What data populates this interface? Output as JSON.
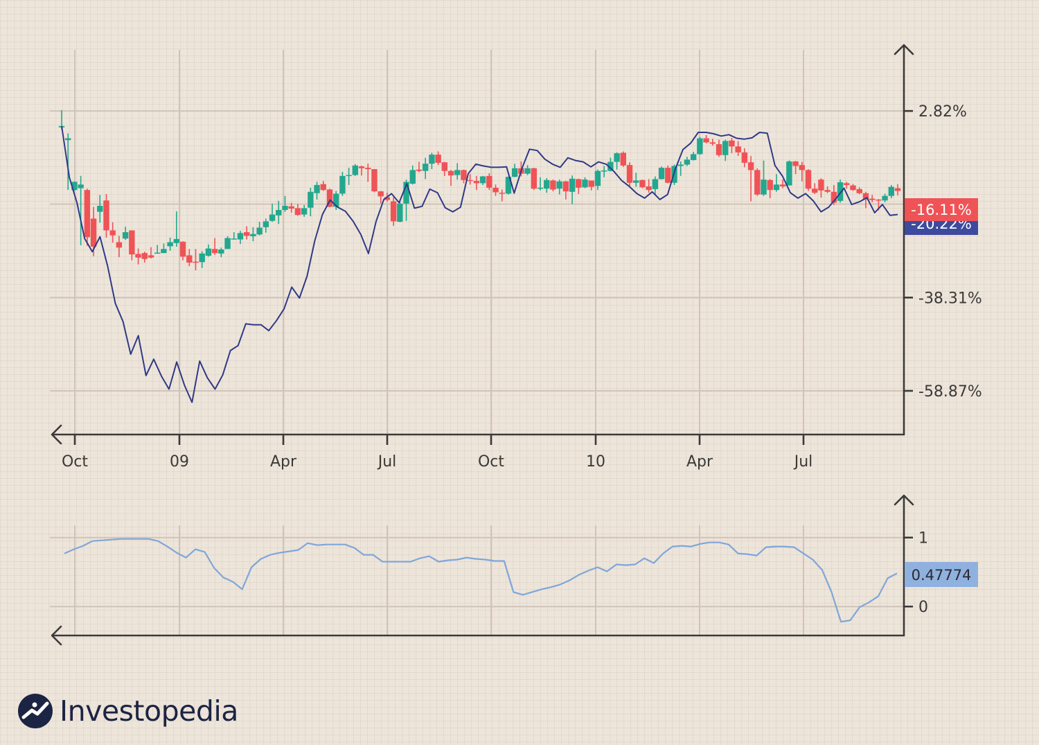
{
  "chart_data": [
    {
      "type": "candlestick",
      "title": "",
      "x_tick_labels": [
        "Oct",
        "09",
        "Apr",
        "Jul",
        "Oct",
        "10",
        "Apr",
        "Jul"
      ],
      "y_tick_labels": [
        "2.82%",
        "-38.31%",
        "-58.87%"
      ],
      "y_ticks": [
        2.82,
        -17.7,
        -38.31,
        -58.87
      ],
      "ylim": [
        -68.5,
        17.2
      ],
      "grid": true,
      "last_value_badges": [
        {
          "label": "-16.11%",
          "value": -16.11,
          "color": "#ef5356"
        },
        {
          "label": "-20.22%",
          "value": -20.22,
          "color": "#3d4a9e"
        }
      ],
      "candles_ohlc_percent": [
        [
          -0.8,
          -0.5,
          3.0,
          -1.3
        ],
        [
          -3.6,
          -3.2,
          -2.1,
          -14.6
        ],
        [
          -14.6,
          -12.8,
          -12.7,
          -14.8
        ],
        [
          -14.2,
          -13.4,
          -11.5,
          -26.8
        ],
        [
          -14.6,
          -25.0,
          -14.3,
          -26.9
        ],
        [
          -20.9,
          -27.1,
          -18.3,
          -29.2
        ],
        [
          -19.4,
          -18.1,
          -15.7,
          -21.8
        ],
        [
          -16.9,
          -23.5,
          -15.5,
          -25.1
        ],
        [
          -23.5,
          -24.6,
          -21.7,
          -26.2
        ],
        [
          -26.1,
          -27.3,
          -24.7,
          -29.4
        ],
        [
          -25.3,
          -23.9,
          -22.7,
          -25.6
        ],
        [
          -23.5,
          -28.8,
          -23.5,
          -30.1
        ],
        [
          -28.7,
          -29.5,
          -27.5,
          -31.0
        ],
        [
          -28.5,
          -29.8,
          -28.2,
          -30.6
        ],
        [
          -29.0,
          -29.5,
          -27.2,
          -29.7
        ],
        [
          -28.5,
          -28.4,
          -26.7,
          -28.4
        ],
        [
          -28.5,
          -27.6,
          -26.4,
          -28.5
        ],
        [
          -27.0,
          -26.1,
          -25.1,
          -28.0
        ],
        [
          -26.3,
          -25.4,
          -19.3,
          -27.1
        ],
        [
          -26.0,
          -29.3,
          -25.9,
          -30.1
        ],
        [
          -29.0,
          -30.6,
          -27.6,
          -31.4
        ],
        [
          -30.4,
          -30.5,
          -27.6,
          -32.3
        ],
        [
          -30.5,
          -28.6,
          -28.1,
          -31.8
        ],
        [
          -29.1,
          -27.5,
          -26.6,
          -29.3
        ],
        [
          -27.6,
          -28.5,
          -25.2,
          -28.9
        ],
        [
          -28.6,
          -27.7,
          -27.3,
          -29.4
        ],
        [
          -27.6,
          -25.2,
          -24.8,
          -27.5
        ],
        [
          -25.4,
          -25.3,
          -23.9,
          -25.5
        ],
        [
          -25.5,
          -24.1,
          -23.6,
          -26.5
        ],
        [
          -23.9,
          -24.7,
          -22.6,
          -25.5
        ],
        [
          -24.8,
          -24.3,
          -22.8,
          -25.9
        ],
        [
          -24.4,
          -22.9,
          -21.6,
          -24.6
        ],
        [
          -22.8,
          -21.5,
          -20.9,
          -24.0
        ],
        [
          -21.4,
          -20.0,
          -17.6,
          -21.6
        ],
        [
          -20.2,
          -19.0,
          -17.0,
          -22.1
        ],
        [
          -19.0,
          -18.1,
          -15.9,
          -19.4
        ],
        [
          -18.2,
          -18.7,
          -17.4,
          -19.6
        ],
        [
          -18.6,
          -20.1,
          -17.7,
          -20.3
        ],
        [
          -20.0,
          -18.6,
          -17.9,
          -20.5
        ],
        [
          -18.5,
          -15.0,
          -14.1,
          -20.4
        ],
        [
          -15.3,
          -13.5,
          -12.8,
          -16.7
        ],
        [
          -13.3,
          -14.6,
          -12.6,
          -14.8
        ],
        [
          -14.5,
          -18.3,
          -14.3,
          -18.4
        ],
        [
          -18.3,
          -15.4,
          -14.8,
          -19.0
        ],
        [
          -15.4,
          -11.5,
          -10.6,
          -15.9
        ],
        [
          -11.5,
          -11.3,
          -9.7,
          -13.5
        ],
        [
          -11.3,
          -9.2,
          -8.9,
          -11.5
        ],
        [
          -9.4,
          -9.8,
          -9.2,
          -11.4
        ],
        [
          -9.7,
          -10.0,
          -8.8,
          -12.8
        ],
        [
          -10.0,
          -14.9,
          -10.0,
          -15.1
        ],
        [
          -14.9,
          -16.0,
          -14.8,
          -17.6
        ],
        [
          -16.2,
          -16.8,
          -15.2,
          -17.1
        ],
        [
          -17.1,
          -21.5,
          -16.2,
          -22.5
        ],
        [
          -21.6,
          -17.6,
          -17.1,
          -21.7
        ],
        [
          -17.6,
          -12.8,
          -12.3,
          -21.4
        ],
        [
          -13.2,
          -10.2,
          -9.2,
          -13.4
        ],
        [
          -10.1,
          -10.4,
          -8.4,
          -10.7
        ],
        [
          -10.4,
          -8.8,
          -7.5,
          -12.2
        ],
        [
          -8.8,
          -6.8,
          -6.4,
          -10.0
        ],
        [
          -6.8,
          -8.6,
          -6.1,
          -9.1
        ],
        [
          -8.5,
          -10.4,
          -8.4,
          -11.5
        ],
        [
          -10.4,
          -11.4,
          -10.2,
          -13.7
        ],
        [
          -11.3,
          -10.2,
          -8.7,
          -12.3
        ],
        [
          -10.2,
          -12.4,
          -10.1,
          -13.1
        ],
        [
          -12.4,
          -12.5,
          -11.1,
          -13.4
        ],
        [
          -12.6,
          -13.1,
          -11.5,
          -14.6
        ],
        [
          -13.1,
          -11.6,
          -11.5,
          -13.5
        ],
        [
          -11.5,
          -14.1,
          -10.9,
          -14.6
        ],
        [
          -14.1,
          -15.1,
          -13.4,
          -15.9
        ],
        [
          -15.2,
          -15.3,
          -14.5,
          -17.1
        ],
        [
          -15.4,
          -11.7,
          -11.6,
          -15.6
        ],
        [
          -11.7,
          -9.8,
          -8.8,
          -11.8
        ],
        [
          -9.8,
          -11.0,
          -8.3,
          -11.6
        ],
        [
          -11.0,
          -9.8,
          -9.1,
          -11.3
        ],
        [
          -9.8,
          -14.3,
          -9.7,
          -14.6
        ],
        [
          -14.2,
          -14.1,
          -11.8,
          -14.7
        ],
        [
          -14.3,
          -12.4,
          -12.0,
          -15.2
        ],
        [
          -12.5,
          -14.5,
          -12.3,
          -14.9
        ],
        [
          -14.3,
          -12.7,
          -12.3,
          -15.6
        ],
        [
          -12.7,
          -14.9,
          -12.6,
          -16.7
        ],
        [
          -15.0,
          -12.1,
          -11.4,
          -17.7
        ],
        [
          -12.2,
          -14.1,
          -12.1,
          -15.5
        ],
        [
          -14.0,
          -12.3,
          -11.8,
          -14.2
        ],
        [
          -12.5,
          -13.9,
          -12.5,
          -14.7
        ],
        [
          -13.7,
          -10.4,
          -10.1,
          -14.6
        ],
        [
          -10.5,
          -10.3,
          -9.3,
          -11.8
        ],
        [
          -10.4,
          -8.4,
          -7.5,
          -10.5
        ],
        [
          -8.4,
          -6.5,
          -6.3,
          -10.1
        ],
        [
          -6.4,
          -9.2,
          -6.1,
          -9.5
        ],
        [
          -9.1,
          -13.0,
          -8.5,
          -13.7
        ],
        [
          -13.0,
          -12.5,
          -10.8,
          -13.9
        ],
        [
          -12.4,
          -14.0,
          -12.3,
          -14.2
        ],
        [
          -13.8,
          -14.6,
          -12.2,
          -15.2
        ],
        [
          -14.4,
          -12.2,
          -11.6,
          -15.8
        ],
        [
          -12.2,
          -9.7,
          -9.4,
          -12.3
        ],
        [
          -9.7,
          -13.0,
          -9.2,
          -13.1
        ],
        [
          -13.0,
          -9.3,
          -9.0,
          -13.5
        ],
        [
          -9.3,
          -9.0,
          -8.3,
          -11.5
        ],
        [
          -9.0,
          -7.9,
          -7.3,
          -9.3
        ],
        [
          -8.0,
          -6.7,
          -6.2,
          -8.1
        ],
        [
          -6.7,
          -3.2,
          -2.9,
          -6.8
        ],
        [
          -3.2,
          -4.1,
          -2.5,
          -4.3
        ],
        [
          -4.1,
          -4.4,
          -3.3,
          -4.8
        ],
        [
          -4.5,
          -6.9,
          -3.5,
          -7.3
        ],
        [
          -6.9,
          -3.8,
          -3.5,
          -8.2
        ],
        [
          -3.7,
          -5.0,
          -3.1,
          -6.5
        ],
        [
          -5.0,
          -6.3,
          -3.8,
          -7.1
        ],
        [
          -6.3,
          -8.6,
          -5.4,
          -9.6
        ],
        [
          -8.5,
          -10.2,
          -7.1,
          -17.1
        ],
        [
          -10.2,
          -15.6,
          -9.8,
          -15.9
        ],
        [
          -15.6,
          -12.3,
          -8.1,
          -15.9
        ],
        [
          -12.4,
          -14.6,
          -12.2,
          -16.4
        ],
        [
          -14.6,
          -13.4,
          -11.1,
          -15.0
        ],
        [
          -13.4,
          -13.8,
          -12.3,
          -14.2
        ],
        [
          -13.6,
          -8.3,
          -8.1,
          -13.6
        ],
        [
          -8.3,
          -9.3,
          -8.2,
          -11.1
        ],
        [
          -9.1,
          -10.2,
          -8.4,
          -12.7
        ],
        [
          -10.2,
          -14.3,
          -10.0,
          -14.8
        ],
        [
          -14.3,
          -15.2,
          -13.1,
          -15.5
        ],
        [
          -12.3,
          -14.7,
          -12.0,
          -16.3
        ],
        [
          -14.6,
          -15.0,
          -13.8,
          -15.3
        ],
        [
          -15.0,
          -17.4,
          -13.5,
          -17.9
        ],
        [
          -17.0,
          -12.9,
          -12.3,
          -17.4
        ],
        [
          -13.1,
          -13.5,
          -12.8,
          -14.3
        ],
        [
          -13.6,
          -14.6,
          -13.3,
          -14.8
        ],
        [
          -14.4,
          -15.3,
          -14.0,
          -15.5
        ],
        [
          -15.3,
          -16.7,
          -15.0,
          -18.6
        ],
        [
          -16.5,
          -16.8,
          -15.7,
          -17.3
        ],
        [
          -16.7,
          -16.9,
          -16.6,
          -19.1
        ],
        [
          -16.9,
          -15.9,
          -15.4,
          -17.3
        ],
        [
          -15.9,
          -13.9,
          -13.5,
          -16.4
        ],
        [
          -14.2,
          -14.8,
          -13.3,
          -15.8
        ]
      ],
      "line_series_percent": [
        -0.5,
        -11.8,
        -17.4,
        -25.3,
        -28.2,
        -24.9,
        -31.4,
        -39.6,
        -43.6,
        -50.8,
        -46.7,
        -55.5,
        -51.9,
        -55.6,
        -58.5,
        -52.5,
        -57.6,
        -61.4,
        -52.3,
        -56.0,
        -58.5,
        -55.4,
        -50.0,
        -48.9,
        -44.1,
        -44.3,
        -44.3,
        -45.6,
        -43.4,
        -40.8,
        -36.0,
        -38.4,
        -33.6,
        -25.8,
        -20.0,
        -16.8,
        -18.4,
        -19.3,
        -21.5,
        -24.4,
        -28.6,
        -21.5,
        -16.7,
        -15.4,
        -17.4,
        -13.2,
        -18.6,
        -18.2,
        -14.4,
        -15.2,
        -18.5,
        -19.4,
        -18.4,
        -11.0,
        -8.9,
        -9.3,
        -9.6,
        -9.6,
        -9.5,
        -15.3,
        -9.9,
        -5.6,
        -5.9,
        -7.8,
        -8.9,
        -9.6,
        -7.5,
        -8.1,
        -8.4,
        -9.5,
        -8.4,
        -8.9,
        -10.5,
        -12.5,
        -13.8,
        -15.4,
        -16.4,
        -15.0,
        -16.7,
        -15.6,
        -10.0,
        -5.7,
        -4.3,
        -1.9,
        -1.9,
        -2.2,
        -2.7,
        -2.4,
        -3.2,
        -3.4,
        -3.1,
        -1.9,
        -2.1,
        -9.2,
        -11.6,
        -15.2,
        -16.4,
        -15.4,
        -17.0,
        -19.4,
        -18.4,
        -16.4,
        -14.2,
        -17.8,
        -17.2,
        -16.3,
        -19.6,
        -17.8,
        -20.2,
        -20.0
      ],
      "series": [
        {
          "values": []
        },
        {
          "values": []
        }
      ]
    },
    {
      "type": "line",
      "y_tick_labels": [
        "1",
        "0"
      ],
      "ylim": [
        -0.42,
        1.6
      ],
      "last_value_badge": {
        "label": "0.47774",
        "value": 0.47774,
        "color": "#7fa6d9"
      },
      "series": [
        {
          "values": [
            0.77,
            0.83,
            0.88,
            0.95,
            0.96,
            0.97,
            0.98,
            0.98,
            0.98,
            0.98,
            0.95,
            0.87,
            0.78,
            0.71,
            0.83,
            0.79,
            0.56,
            0.42,
            0.36,
            0.25,
            0.57,
            0.69,
            0.75,
            0.78,
            0.8,
            0.82,
            0.92,
            0.89,
            0.9,
            0.9,
            0.9,
            0.85,
            0.75,
            0.75,
            0.65,
            0.65,
            0.65,
            0.65,
            0.7,
            0.73,
            0.65,
            0.67,
            0.68,
            0.71,
            0.69,
            0.68,
            0.66,
            0.66,
            0.21,
            0.17,
            0.21,
            0.25,
            0.28,
            0.32,
            0.38,
            0.46,
            0.52,
            0.57,
            0.51,
            0.61,
            0.6,
            0.61,
            0.7,
            0.63,
            0.77,
            0.87,
            0.88,
            0.87,
            0.91,
            0.93,
            0.93,
            0.9,
            0.77,
            0.76,
            0.74,
            0.86,
            0.87,
            0.87,
            0.86,
            0.77,
            0.68,
            0.53,
            0.21,
            -0.22,
            -0.2,
            -0.01,
            0.06,
            0.15,
            0.41,
            0.48
          ]
        }
      ]
    }
  ],
  "logo": {
    "text": "Investopedia"
  },
  "colors": {
    "background": "#ede4da",
    "up_candle": "#23a88f",
    "down_candle": "#ef5356",
    "line_main": "#2e3a85",
    "line_secondary": "#7fa6d9",
    "axis": "#3a3a3a",
    "grid": "#cfc4b7",
    "logo": "#1c2444"
  }
}
